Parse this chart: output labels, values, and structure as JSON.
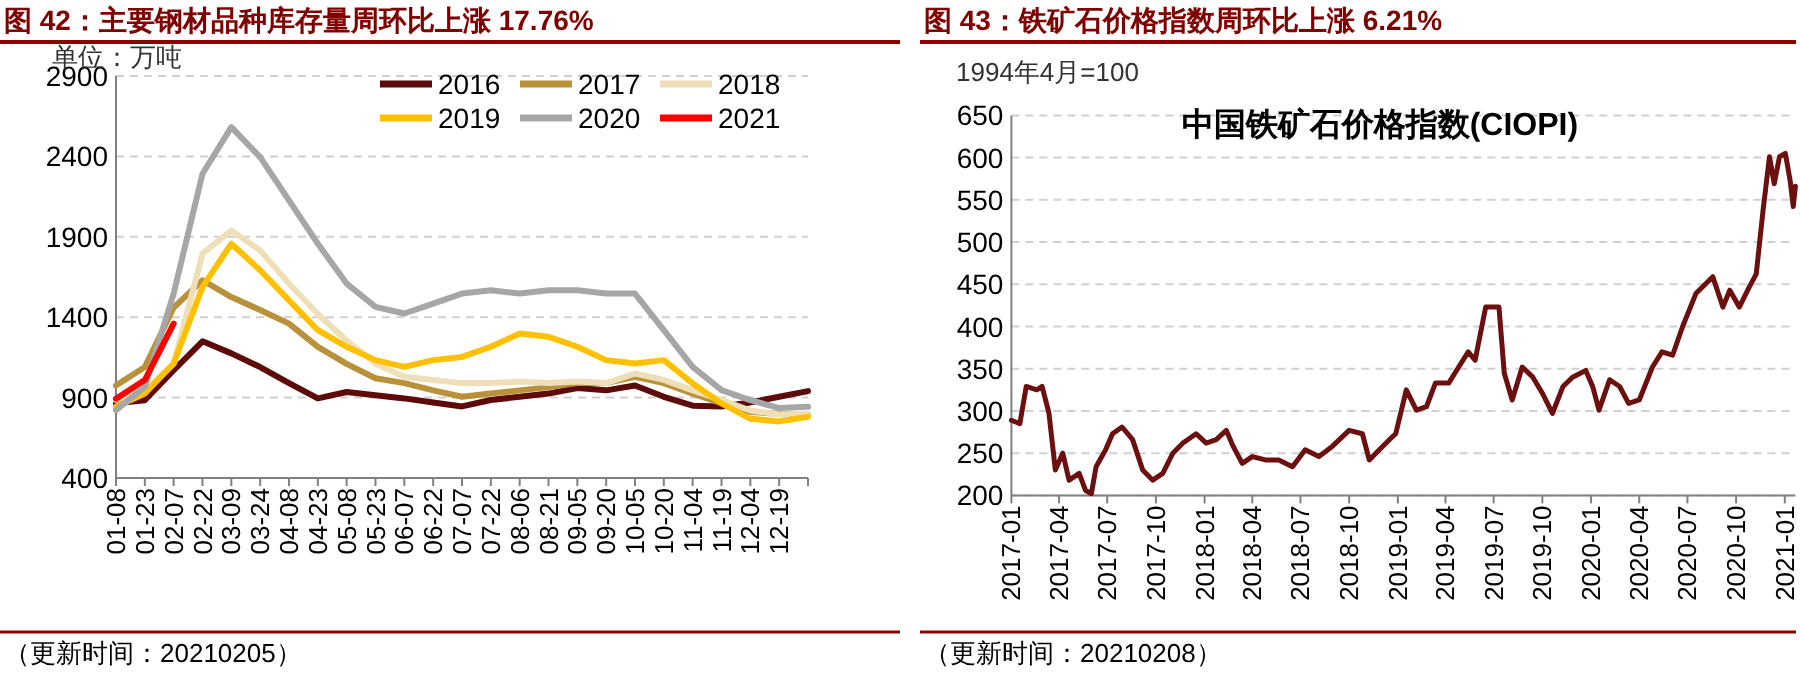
{
  "chart_data": [
    {
      "type": "line",
      "title": "图 42：主要钢材品种库存量周环比上涨 17.76%",
      "ylabel": "单位：万吨",
      "categories": [
        "01-08",
        "01-23",
        "02-07",
        "02-22",
        "03-09",
        "03-24",
        "04-08",
        "04-23",
        "05-08",
        "05-23",
        "06-07",
        "06-22",
        "07-07",
        "07-22",
        "08-06",
        "08-21",
        "09-05",
        "09-20",
        "10-05",
        "10-20",
        "11-04",
        "11-19",
        "12-04",
        "12-19",
        null
      ],
      "series": [
        {
          "name": "2016",
          "color": "#5c0a0a",
          "values": [
            864,
            884,
            1070,
            1250,
            1175,
            1090,
            990,
            895,
            935,
            915,
            895,
            870,
            845,
            885,
            905,
            925,
            960,
            945,
            975,
            905,
            850,
            845,
            870,
            905,
            940
          ]
        },
        {
          "name": "2017",
          "color": "#b8913a",
          "values": [
            975,
            1090,
            1460,
            1630,
            1525,
            1445,
            1360,
            1215,
            1110,
            1020,
            990,
            945,
            905,
            925,
            945,
            965,
            990,
            990,
            1030,
            990,
            925,
            865,
            810,
            800,
            795
          ]
        },
        {
          "name": "2018",
          "color": "#eedfb8",
          "values": [
            885,
            945,
            1110,
            1795,
            1940,
            1815,
            1610,
            1420,
            1255,
            1110,
            1030,
            1010,
            990,
            990,
            1000,
            990,
            1000,
            990,
            1050,
            1010,
            945,
            885,
            820,
            795,
            800
          ]
        },
        {
          "name": "2019",
          "color": "#ffc000",
          "values": [
            843,
            926,
            1112,
            1588,
            1857,
            1692,
            1505,
            1319,
            1216,
            1133,
            1091,
            1133,
            1153,
            1216,
            1298,
            1278,
            1216,
            1133,
            1112,
            1133,
            988,
            864,
            768,
            752,
            781
          ]
        },
        {
          "name": "2020",
          "color": "#a6a6a6",
          "values": [
            822,
            967,
            1547,
            2292,
            2582,
            2395,
            2126,
            1857,
            1609,
            1464,
            1423,
            1485,
            1547,
            1567,
            1547,
            1567,
            1567,
            1547,
            1547,
            1319,
            1091,
            946,
            884,
            835,
            843
          ]
        },
        {
          "name": "2021",
          "color": "#ff0000",
          "values": [
            893,
            1009,
            1360,
            null,
            null,
            null,
            null,
            null,
            null,
            null,
            null,
            null,
            null,
            null,
            null,
            null,
            null,
            null,
            null,
            null,
            null,
            null,
            null,
            null,
            null
          ]
        }
      ],
      "ylim": [
        400,
        2900
      ],
      "yticks": [
        400,
        900,
        1400,
        1900,
        2400,
        2900
      ],
      "grid": "y",
      "legend": "top right",
      "annotations": [
        "（更新时间：20210205）"
      ]
    },
    {
      "type": "line",
      "title": "图 43：铁矿石价格指数周环比上涨 6.21%",
      "subtitle": "中国铁矿石价格指数(CIOPI)",
      "ylabel": "1994年4月=100",
      "x": [
        "2017-01-01",
        "2017-01-17",
        "2017-01-29",
        "2017-02-18",
        "2017-02-28",
        "2017-03-13",
        "2017-03-25",
        "2017-04-08",
        "2017-04-20",
        "2017-05-09",
        "2017-05-21",
        "2017-06-01",
        "2017-06-10",
        "2017-06-28",
        "2017-07-11",
        "2017-07-29",
        "2017-08-18",
        "2017-09-06",
        "2017-09-25",
        "2017-10-14",
        "2017-11-02",
        "2017-11-21",
        "2017-12-16",
        "2018-01-04",
        "2018-01-23",
        "2018-02-11",
        "2018-02-24",
        "2018-03-13",
        "2018-04-01",
        "2018-04-26",
        "2018-05-21",
        "2018-06-16",
        "2018-07-10",
        "2018-08-05",
        "2018-08-30",
        "2018-10-01",
        "2018-10-26",
        "2018-11-08",
        "2018-11-27",
        "2018-12-16",
        "2018-12-28",
        "2019-01-17",
        "2019-02-05",
        "2019-02-24",
        "2019-03-13",
        "2019-04-07",
        "2019-04-26",
        "2019-05-14",
        "2019-05-27",
        "2019-06-16",
        "2019-07-11",
        "2019-07-21",
        "2019-08-05",
        "2019-08-24",
        "2019-09-13",
        "2019-10-01",
        "2019-10-20",
        "2019-11-09",
        "2019-11-27",
        "2019-12-22",
        "2020-01-04",
        "2020-01-16",
        "2020-02-05",
        "2020-02-24",
        "2020-03-12",
        "2020-04-01",
        "2020-04-26",
        "2020-05-14",
        "2020-06-03",
        "2020-06-22",
        "2020-07-17",
        "2020-08-18",
        "2020-09-06",
        "2020-09-19",
        "2020-10-07",
        "2020-10-26",
        "2020-11-08",
        "2020-11-21",
        "2020-12-03",
        "2020-12-12",
        "2020-12-22",
        "2021-01-02",
        "2021-01-11",
        "2021-01-17",
        "2021-01-21"
      ],
      "series": [
        {
          "color": "#6b0f0f",
          "values": [
            289,
            285,
            329,
            325,
            329,
            297,
            230,
            250,
            218,
            226,
            206,
            202,
            234,
            254,
            273,
            281,
            266,
            230,
            218,
            226,
            250,
            262,
            273,
            262,
            266,
            277,
            258,
            238,
            246,
            242,
            242,
            234,
            254,
            246,
            258,
            277,
            273,
            242,
            254,
            266,
            273,
            325,
            301,
            305,
            333,
            333,
            352,
            370,
            360,
            423,
            423,
            345,
            313,
            352,
            340,
            321,
            297,
            329,
            340,
            348,
            329,
            301,
            337,
            329,
            309,
            313,
            352,
            370,
            366,
            400,
            439,
            459,
            423,
            443,
            423,
            447,
            462,
            538,
            601,
            569,
            601,
            605,
            573,
            542,
            566
          ]
        }
      ],
      "xlim": [
        "2017-01-01",
        "2021-01-21"
      ],
      "xticks": [
        "2017-01",
        "2017-04",
        "2017-07",
        "2017-10",
        "2018-01",
        "2018-04",
        "2018-07",
        "2018-10",
        "2019-01",
        "2019-04",
        "2019-07",
        "2019-10",
        "2020-01",
        "2020-04",
        "2020-07",
        "2020-10",
        "2021-01"
      ],
      "ylim": [
        200,
        650
      ],
      "yticks": [
        200,
        250,
        300,
        350,
        400,
        450,
        500,
        550,
        600,
        650
      ],
      "grid": "y",
      "annotations": [
        "（更新时间：20210208）"
      ]
    }
  ]
}
